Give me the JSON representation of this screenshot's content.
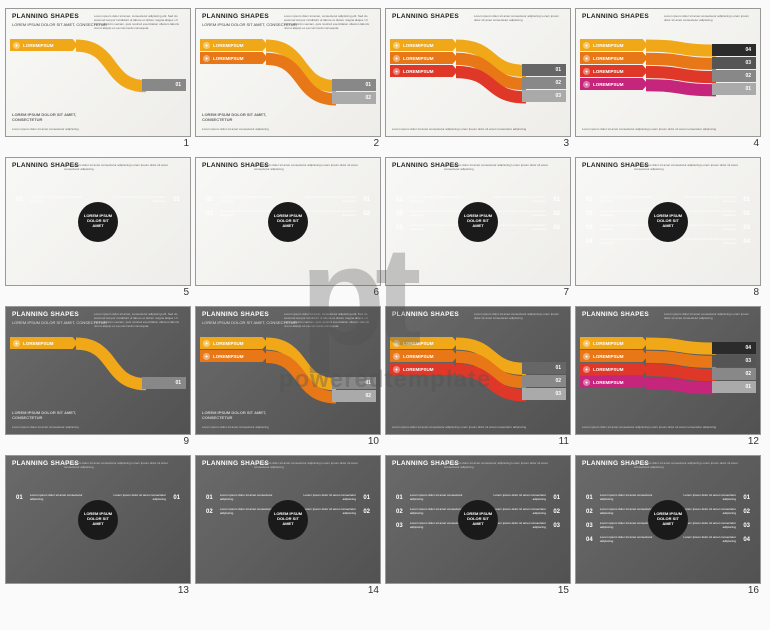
{
  "watermark": {
    "logo_p": "p",
    "logo_t": "t",
    "text": "poweredtemplate",
    "color": "rgba(80,80,80,0.35)"
  },
  "common": {
    "title": "PLANNING SHAPES",
    "subtitle": "LOREM IPSUM DOLOR SIT AMET, CONSECTETUR",
    "arrow_label": "LOREMIPSUM",
    "hub_center": "LOREM IPSUM DOLOR SIT AMET"
  },
  "colors": {
    "yellow": "#f0a818",
    "orange": "#e87817",
    "red": "#e03828",
    "magenta": "#c5257a",
    "grey_dark": "#3a3a3a",
    "grey_mid": "#888888",
    "grey_light": "#c5c5c5",
    "grey_vlight": "#e0e0e0",
    "near_black": "#2b2b2b"
  },
  "slides": [
    {
      "num": "1",
      "theme": "light",
      "type": "wave",
      "left_arrows": [
        {
          "c": "#f0a818"
        }
      ],
      "right_boxes": [
        {
          "c": "#888888",
          "n": "01"
        }
      ],
      "body_pos": "right"
    },
    {
      "num": "2",
      "theme": "light",
      "type": "wave",
      "left_arrows": [
        {
          "c": "#f0a818"
        },
        {
          "c": "#e87817"
        }
      ],
      "right_boxes": [
        {
          "c": "#888888",
          "n": "01"
        },
        {
          "c": "#aaaaaa",
          "n": "02"
        }
      ],
      "body_pos": "right"
    },
    {
      "num": "3",
      "theme": "light",
      "type": "wave",
      "left_arrows": [
        {
          "c": "#f0a818"
        },
        {
          "c": "#e87817"
        },
        {
          "c": "#e03828"
        }
      ],
      "right_boxes": [
        {
          "c": "#666666",
          "n": "01"
        },
        {
          "c": "#888888",
          "n": "02"
        },
        {
          "c": "#aaaaaa",
          "n": "03"
        }
      ],
      "body_pos": "bottom"
    },
    {
      "num": "4",
      "theme": "light",
      "type": "wave",
      "left_arrows": [
        {
          "c": "#f0a818"
        },
        {
          "c": "#e87817"
        },
        {
          "c": "#e03828"
        },
        {
          "c": "#c5257a"
        }
      ],
      "right_boxes": [
        {
          "c": "#2b2b2b",
          "n": "04"
        },
        {
          "c": "#555555",
          "n": "03"
        },
        {
          "c": "#888888",
          "n": "02"
        },
        {
          "c": "#aaaaaa",
          "n": "01"
        }
      ],
      "body_pos": "bottom"
    },
    {
      "num": "5",
      "theme": "light",
      "type": "hub",
      "pairs": 1,
      "left_colors": [
        "#f0a818"
      ],
      "right_colors": [
        "#f0a818"
      ],
      "placeholders": 3
    },
    {
      "num": "6",
      "theme": "light",
      "type": "hub",
      "pairs": 2,
      "left_colors": [
        "#f0a818",
        "#e87817"
      ],
      "right_colors": [
        "#f0a818",
        "#e87817"
      ],
      "placeholders": 2
    },
    {
      "num": "7",
      "theme": "light",
      "type": "hub",
      "pairs": 3,
      "left_colors": [
        "#f0a818",
        "#e87817",
        "#e03828"
      ],
      "right_colors": [
        "#f0a818",
        "#e87817",
        "#e03828"
      ],
      "placeholders": 1
    },
    {
      "num": "8",
      "theme": "light",
      "type": "hub",
      "pairs": 4,
      "left_colors": [
        "#f0a818",
        "#e87817",
        "#e03828",
        "#c5257a"
      ],
      "right_colors": [
        "#f0a818",
        "#e87817",
        "#e03828",
        "#c5257a"
      ],
      "placeholders": 0
    },
    {
      "num": "9",
      "theme": "dark",
      "type": "wave",
      "left_arrows": [
        {
          "c": "#f0a818"
        }
      ],
      "right_boxes": [
        {
          "c": "#888888",
          "n": "01"
        }
      ],
      "body_pos": "right"
    },
    {
      "num": "10",
      "theme": "dark",
      "type": "wave",
      "left_arrows": [
        {
          "c": "#f0a818"
        },
        {
          "c": "#e87817"
        }
      ],
      "right_boxes": [
        {
          "c": "#888888",
          "n": "01"
        },
        {
          "c": "#aaaaaa",
          "n": "02"
        }
      ],
      "body_pos": "right"
    },
    {
      "num": "11",
      "theme": "dark",
      "type": "wave",
      "left_arrows": [
        {
          "c": "#f0a818"
        },
        {
          "c": "#e87817"
        },
        {
          "c": "#e03828"
        }
      ],
      "right_boxes": [
        {
          "c": "#666666",
          "n": "01"
        },
        {
          "c": "#888888",
          "n": "02"
        },
        {
          "c": "#aaaaaa",
          "n": "03"
        }
      ],
      "body_pos": "bottom"
    },
    {
      "num": "12",
      "theme": "dark",
      "type": "wave",
      "left_arrows": [
        {
          "c": "#f0a818"
        },
        {
          "c": "#e87817"
        },
        {
          "c": "#e03828"
        },
        {
          "c": "#c5257a"
        }
      ],
      "right_boxes": [
        {
          "c": "#2b2b2b",
          "n": "04"
        },
        {
          "c": "#555555",
          "n": "03"
        },
        {
          "c": "#888888",
          "n": "02"
        },
        {
          "c": "#aaaaaa",
          "n": "01"
        }
      ],
      "body_pos": "bottom"
    },
    {
      "num": "13",
      "theme": "dark",
      "type": "hub",
      "pairs": 1,
      "left_colors": [
        "#f0a818"
      ],
      "right_colors": [
        "#f0a818"
      ],
      "placeholders": 3
    },
    {
      "num": "14",
      "theme": "dark",
      "type": "hub",
      "pairs": 2,
      "left_colors": [
        "#f0a818",
        "#e87817"
      ],
      "right_colors": [
        "#f0a818",
        "#e87817"
      ],
      "placeholders": 2
    },
    {
      "num": "15",
      "theme": "dark",
      "type": "hub",
      "pairs": 3,
      "left_colors": [
        "#f0a818",
        "#e87817",
        "#e03828"
      ],
      "right_colors": [
        "#f0a818",
        "#e87817",
        "#e03828"
      ],
      "placeholders": 1
    },
    {
      "num": "16",
      "theme": "dark",
      "type": "hub",
      "pairs": 4,
      "left_colors": [
        "#f0a818",
        "#e87817",
        "#e03828",
        "#c5257a"
      ],
      "right_colors": [
        "#f0a818",
        "#e87817",
        "#e03828",
        "#c5257a"
      ],
      "placeholders": 0
    }
  ],
  "filler": "Lorem ipsum dolor sit amet, consectetur adipiscing elit. Sed do eiusmod tempor incididunt ut labore et dolore magna aliqua. Ut enim ad minim veniam, quis nostrud exercitation ullamco laboris nisi ut aliquip ex ea commodo consequat.",
  "filler_short": "Lorem ipsum dolor sit amet consectetur adipiscing"
}
